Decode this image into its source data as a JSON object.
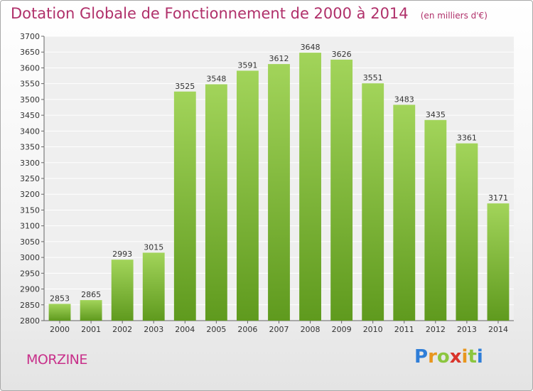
{
  "header": {
    "title": "Dotation Globale de Fonctionnement de 2000 à 2014",
    "subtitle": "(en milliers d'€)"
  },
  "footer": {
    "commune": "MORZINE",
    "logo_text": "Proxiti"
  },
  "colors": {
    "bar_light": "#a2d45a",
    "bar_dark": "#5f9a1e",
    "title": "#b0306a",
    "commune": "#c8308a"
  },
  "chart_data": {
    "type": "bar",
    "title": "Dotation Globale de Fonctionnement de 2000 à 2014",
    "subtitle": "(en milliers d'€)",
    "categories": [
      "2000",
      "2001",
      "2002",
      "2003",
      "2004",
      "2005",
      "2006",
      "2007",
      "2008",
      "2009",
      "2010",
      "2011",
      "2012",
      "2013",
      "2014"
    ],
    "values": [
      2853,
      2865,
      2993,
      3015,
      3525,
      3548,
      3591,
      3612,
      3648,
      3626,
      3551,
      3483,
      3435,
      3361,
      3171
    ],
    "ylim": [
      2800,
      3700
    ],
    "ytick_step": 50,
    "grid": true
  }
}
